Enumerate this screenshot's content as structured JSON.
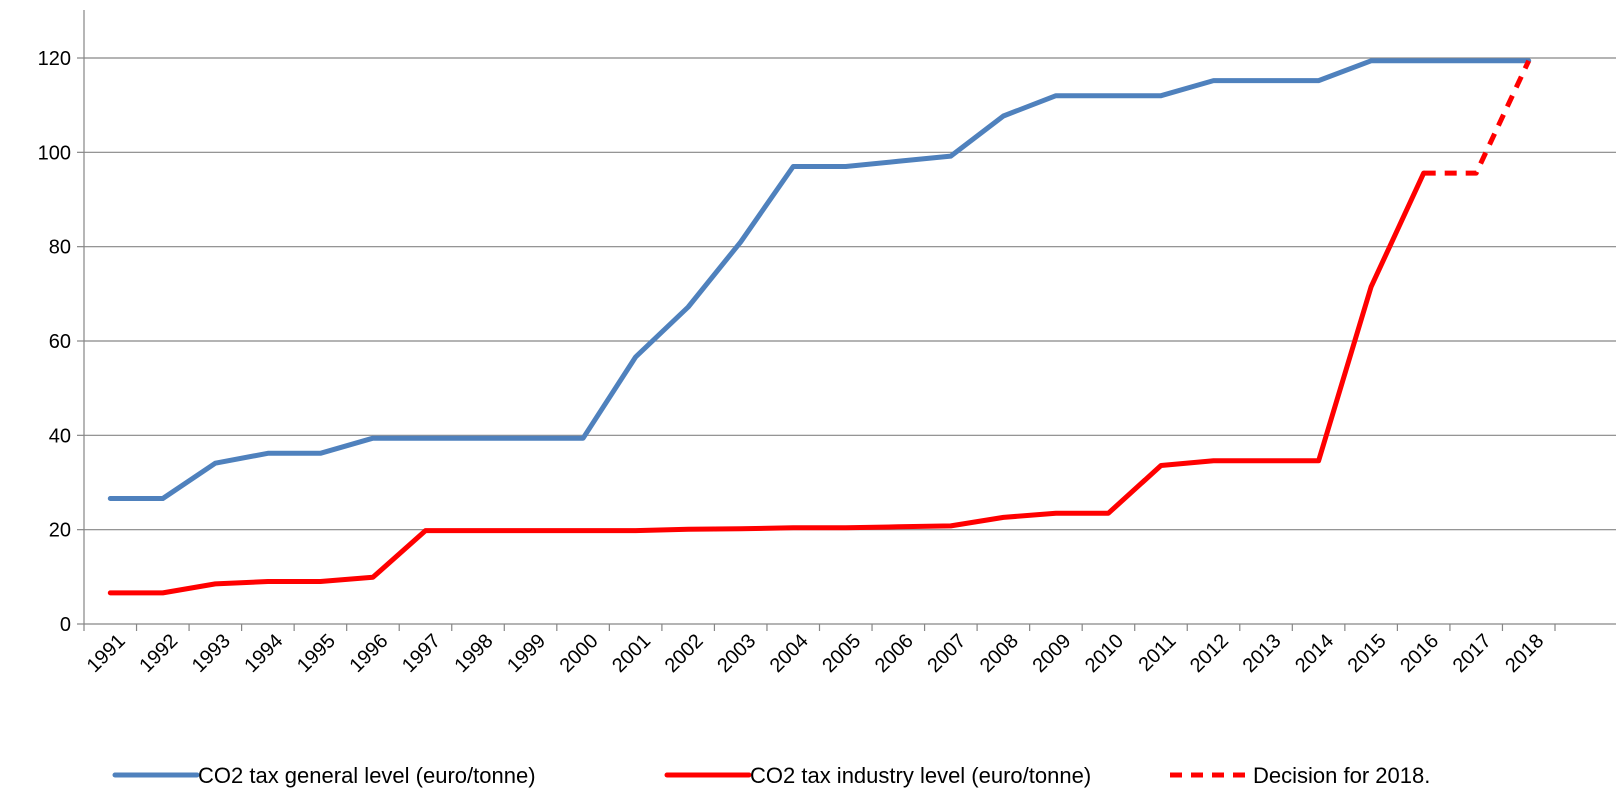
{
  "chart_data": {
    "type": "line",
    "title": "",
    "xlabel": "",
    "ylabel": "",
    "x": [
      "1991",
      "1992",
      "1993",
      "1994",
      "1995",
      "1996",
      "1997",
      "1998",
      "1999",
      "2000",
      "2001",
      "2002",
      "2003",
      "2004",
      "2005",
      "2006",
      "2007",
      "2008",
      "2009",
      "2010",
      "2011",
      "2012",
      "2013",
      "2014",
      "2015",
      "2016",
      "2017",
      "2018"
    ],
    "ylim": [
      0,
      120
    ],
    "yticks": [
      "0",
      "20",
      "40",
      "60",
      "80",
      "100",
      "120"
    ],
    "grid": true,
    "legend_position": "bottom",
    "series": [
      {
        "name": "CO2 tax general level (euro/tonne)",
        "color": "#4f81bd",
        "style": "solid",
        "values": [
          26.6,
          26.6,
          34.1,
          36.2,
          36.2,
          39.4,
          39.4,
          39.4,
          39.4,
          39.4,
          56.6,
          67.2,
          81.0,
          97.0,
          97.0,
          98.1,
          99.2,
          107.7,
          112.0,
          112.0,
          112.0,
          115.2,
          115.2,
          115.2,
          119.4,
          119.4,
          119.4,
          119.4
        ]
      },
      {
        "name": "CO2 tax industry level  (euro/tonne)",
        "color": "#ff0000",
        "style": "solid",
        "values": [
          6.6,
          6.6,
          8.5,
          9.0,
          9.0,
          9.9,
          19.8,
          19.8,
          19.8,
          19.8,
          19.8,
          20.1,
          20.2,
          20.4,
          20.4,
          20.6,
          20.8,
          22.6,
          23.5,
          23.5,
          33.6,
          34.6,
          34.6,
          34.6,
          71.5,
          95.6,
          null,
          null
        ]
      },
      {
        "name": "Decision for 2018.",
        "color": "#ff0000",
        "style": "dashed",
        "values": [
          null,
          null,
          null,
          null,
          null,
          null,
          null,
          null,
          null,
          null,
          null,
          null,
          null,
          null,
          null,
          null,
          null,
          null,
          null,
          null,
          null,
          null,
          null,
          null,
          null,
          95.6,
          95.6,
          119.4
        ]
      }
    ]
  }
}
